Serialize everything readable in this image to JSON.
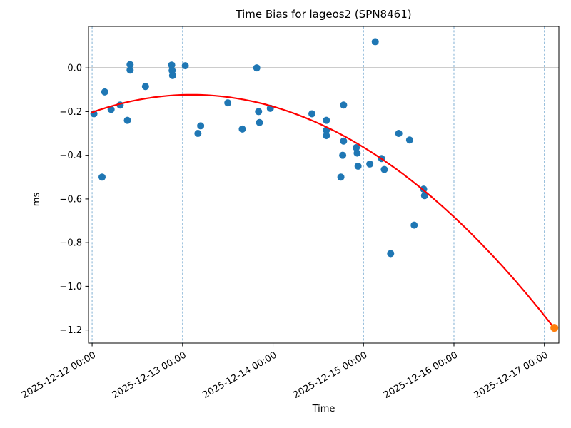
{
  "figure": {
    "title": "Time Bias for lageos2 (SPN8461)",
    "xlabel": "Time",
    "ylabel": "ms"
  },
  "chart_data": {
    "type": "scatter",
    "title": "Time Bias for lageos2 (SPN8461)",
    "xlabel": "Time",
    "ylabel": "ms",
    "x_unit": "days since 2025-12-12 00:00",
    "xlim_days": [
      -0.04,
      5.16
    ],
    "ylim_ms": [
      -1.26,
      0.19
    ],
    "grid": {
      "axis": "x",
      "style": "dashed",
      "color": "#74a8cf"
    },
    "zero_line": {
      "value": 0.0,
      "color": "#333333"
    },
    "spine_color": "#000000",
    "x_ticks": [
      {
        "t": 0,
        "label": "2025-12-12 00:00"
      },
      {
        "t": 1,
        "label": "2025-12-13 00:00"
      },
      {
        "t": 2,
        "label": "2025-12-14 00:00"
      },
      {
        "t": 3,
        "label": "2025-12-15 00:00"
      },
      {
        "t": 4,
        "label": "2025-12-16 00:00"
      },
      {
        "t": 5,
        "label": "2025-12-17 00:00"
      }
    ],
    "y_ticks": [
      {
        "v": 0.0,
        "label": "0.0"
      },
      {
        "v": -0.2,
        "label": "−0.2"
      },
      {
        "v": -0.4,
        "label": "−0.4"
      },
      {
        "v": -0.6,
        "label": "−0.6"
      },
      {
        "v": -0.8,
        "label": "−0.8"
      },
      {
        "v": -1.0,
        "label": "−1.0"
      },
      {
        "v": -1.2,
        "label": "−1.2"
      }
    ],
    "series": [
      {
        "name": "time-bias-observations",
        "type": "scatter",
        "color": "#1f77b4",
        "marker_radius": 5,
        "points": [
          [
            0.02,
            -0.21
          ],
          [
            0.11,
            -0.5
          ],
          [
            0.14,
            -0.11
          ],
          [
            0.21,
            -0.19
          ],
          [
            0.31,
            -0.17
          ],
          [
            0.39,
            -0.24
          ],
          [
            0.42,
            0.015
          ],
          [
            0.42,
            -0.01
          ],
          [
            0.59,
            -0.085
          ],
          [
            0.88,
            0.013
          ],
          [
            0.885,
            -0.012
          ],
          [
            0.89,
            -0.035
          ],
          [
            1.03,
            0.01
          ],
          [
            1.17,
            -0.3
          ],
          [
            1.2,
            -0.265
          ],
          [
            1.5,
            -0.16
          ],
          [
            1.66,
            -0.28
          ],
          [
            1.82,
            0.0
          ],
          [
            1.84,
            -0.2
          ],
          [
            1.85,
            -0.25
          ],
          [
            1.97,
            -0.185
          ],
          [
            2.43,
            -0.21
          ],
          [
            2.59,
            -0.24
          ],
          [
            2.59,
            -0.285
          ],
          [
            2.59,
            -0.31
          ],
          [
            2.75,
            -0.5
          ],
          [
            2.77,
            -0.4
          ],
          [
            2.78,
            -0.17
          ],
          [
            2.78,
            -0.335
          ],
          [
            2.92,
            -0.365
          ],
          [
            2.93,
            -0.39
          ],
          [
            2.94,
            -0.45
          ],
          [
            3.07,
            -0.44
          ],
          [
            3.13,
            0.12
          ],
          [
            3.2,
            -0.415
          ],
          [
            3.23,
            -0.465
          ],
          [
            3.3,
            -0.85
          ],
          [
            3.39,
            -0.3
          ],
          [
            3.51,
            -0.33
          ],
          [
            3.56,
            -0.72
          ],
          [
            3.665,
            -0.555
          ],
          [
            3.675,
            -0.585
          ]
        ]
      },
      {
        "name": "quadratic-fit",
        "type": "line",
        "color": "#ff0000",
        "line_width": 2.2,
        "fit": {
          "form": "vertex_y + a*(t - vertex_t)^2",
          "vertex_t": 1.1,
          "vertex_y": -0.123,
          "a": -0.0665,
          "t_range": [
            0.0,
            5.11
          ]
        }
      },
      {
        "name": "predicted-point",
        "type": "scatter",
        "color": "#ff7f0e",
        "marker_radius": 5.5,
        "points": [
          [
            5.11,
            -1.19
          ]
        ]
      }
    ]
  }
}
